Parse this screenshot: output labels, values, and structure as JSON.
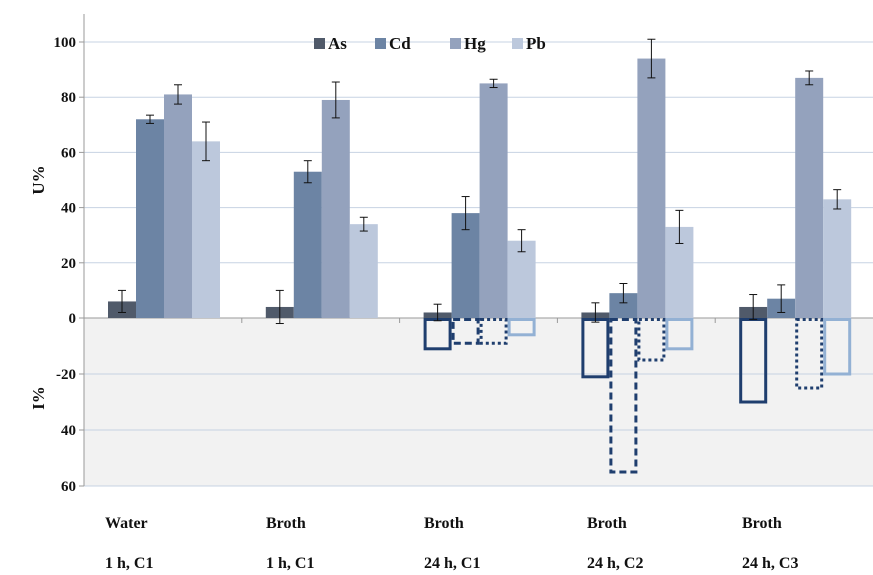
{
  "chart_data": {
    "type": "bar",
    "categories": [
      [
        "Water",
        "1 h, C1"
      ],
      [
        "Broth",
        "1 h, C1"
      ],
      [
        "Broth",
        "24 h, C1"
      ],
      [
        "Broth",
        "24 h, C2"
      ],
      [
        "Broth",
        "24 h, C3"
      ]
    ],
    "ylabel_upper": "U%",
    "ylabel_lower": "I%",
    "ylim": [
      -60,
      100
    ],
    "yticks": [
      100,
      80,
      60,
      40,
      20,
      0,
      -20,
      -40,
      -60
    ],
    "ytick_labels": [
      "100",
      "80",
      "60",
      "40",
      "20",
      "0",
      "-20",
      "40",
      "60"
    ],
    "grid": true,
    "legend_position": "top",
    "series": [
      {
        "name": "As",
        "color": "#505a6a",
        "i_style": "solid",
        "i_color": "#1f3e6e",
        "u_values": [
          6,
          4,
          2,
          2,
          4
        ],
        "u_errors": [
          4,
          6,
          3,
          3.5,
          4.5
        ],
        "i_values": [
          null,
          null,
          11,
          21,
          30
        ]
      },
      {
        "name": "Cd",
        "color": "#6c84a4",
        "i_style": "dashed",
        "i_color": "#1f3e6e",
        "u_values": [
          72,
          53,
          38,
          9,
          7
        ],
        "u_errors": [
          1.5,
          4,
          6,
          3.5,
          5
        ],
        "i_values": [
          null,
          null,
          9,
          55,
          null
        ]
      },
      {
        "name": "Hg",
        "color": "#94a2bd",
        "i_style": "dotted",
        "i_color": "#1f3e6e",
        "u_values": [
          81,
          79,
          85,
          94,
          87
        ],
        "u_errors": [
          3.5,
          6.5,
          1.5,
          7,
          2.5
        ],
        "i_values": [
          null,
          null,
          9,
          15,
          25
        ]
      },
      {
        "name": "Pb",
        "color": "#bcc8dc",
        "i_style": "solid",
        "i_color": "#93b1d4",
        "u_values": [
          64,
          34,
          28,
          33,
          43
        ],
        "u_errors": [
          7,
          2.5,
          4,
          6,
          3.5
        ],
        "i_values": [
          null,
          null,
          6,
          11,
          20
        ]
      }
    ]
  }
}
